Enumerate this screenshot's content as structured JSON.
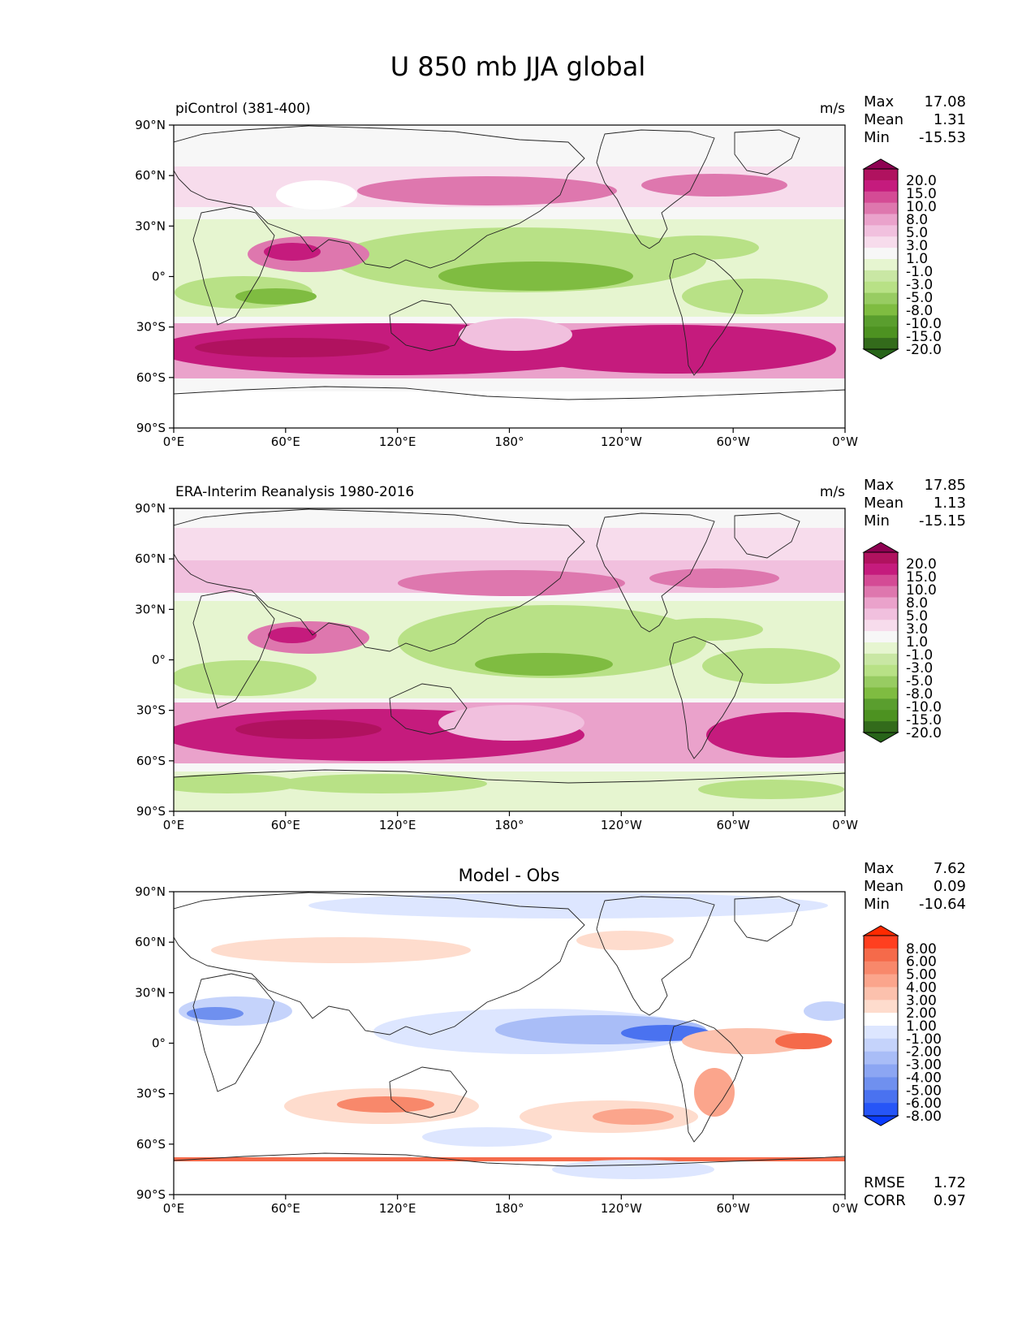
{
  "title": "U 850 mb JJA global",
  "x_ticks": [
    "0°E",
    "60°E",
    "120°E",
    "180°",
    "120°W",
    "60°W",
    "0°W"
  ],
  "y_ticks": [
    "90°N",
    "60°N",
    "30°N",
    "0°",
    "30°S",
    "60°S",
    "90°S"
  ],
  "panels": [
    {
      "left_title": "piControl (381-400)",
      "center_title": "",
      "units": "m/s",
      "stats": [
        {
          "label": "Max",
          "value": "17.08"
        },
        {
          "label": "Mean",
          "value": "1.31"
        },
        {
          "label": "Min",
          "value": "-15.53"
        }
      ],
      "colorbar": {
        "labels": [
          "20.0",
          "15.0",
          "10.0",
          "8.0",
          "5.0",
          "3.0",
          "1.0",
          "-1.0",
          "-3.0",
          "-5.0",
          "-8.0",
          "-10.0",
          "-15.0",
          "-20.0"
        ],
        "colors": [
          "#8e0152",
          "#b0125f",
          "#c51b7d",
          "#d44b95",
          "#de77ae",
          "#eaa2cb",
          "#f1c0de",
          "#f7dcec",
          "#f7f7f7",
          "#e6f5d0",
          "#c9e7a4",
          "#b8e186",
          "#98cc62",
          "#7fbc41",
          "#5a9e2e",
          "#4d9221",
          "#336b1b",
          "#276419"
        ]
      },
      "footer_stats": []
    },
    {
      "left_title": "ERA-Interim Reanalysis 1980-2016",
      "center_title": "",
      "units": "m/s",
      "stats": [
        {
          "label": "Max",
          "value": "17.85"
        },
        {
          "label": "Mean",
          "value": "1.13"
        },
        {
          "label": "Min",
          "value": "-15.15"
        }
      ],
      "colorbar": {
        "labels": [
          "20.0",
          "15.0",
          "10.0",
          "8.0",
          "5.0",
          "3.0",
          "1.0",
          "-1.0",
          "-3.0",
          "-5.0",
          "-8.0",
          "-10.0",
          "-15.0",
          "-20.0"
        ],
        "colors": [
          "#8e0152",
          "#b0125f",
          "#c51b7d",
          "#d44b95",
          "#de77ae",
          "#eaa2cb",
          "#f1c0de",
          "#f7dcec",
          "#f7f7f7",
          "#e6f5d0",
          "#c9e7a4",
          "#b8e186",
          "#98cc62",
          "#7fbc41",
          "#5a9e2e",
          "#4d9221",
          "#336b1b",
          "#276419"
        ]
      },
      "footer_stats": []
    },
    {
      "left_title": "",
      "center_title": "Model - Obs",
      "units": "",
      "stats": [
        {
          "label": "Max",
          "value": "7.62"
        },
        {
          "label": "Mean",
          "value": "0.09"
        },
        {
          "label": "Min",
          "value": "-10.64"
        }
      ],
      "colorbar": {
        "labels": [
          "8.00",
          "6.00",
          "5.00",
          "4.00",
          "3.00",
          "2.00",
          "1.00",
          "-1.00",
          "-2.00",
          "-3.00",
          "-4.00",
          "-5.00",
          "-6.00",
          "-8.00"
        ],
        "colors": [
          "#ff2a00",
          "#ff3f1f",
          "#f56a4a",
          "#f8886b",
          "#fba58c",
          "#fcc1ad",
          "#fedccd",
          "#ffffff",
          "#dde6ff",
          "#c5d3fb",
          "#a9bdf7",
          "#8ca6f3",
          "#6f90ef",
          "#4a72f0",
          "#2655f7",
          "#0a3cff"
        ]
      },
      "footer_stats": [
        {
          "label": "RMSE",
          "value": "1.72"
        },
        {
          "label": "CORR",
          "value": "0.97"
        }
      ]
    }
  ]
}
